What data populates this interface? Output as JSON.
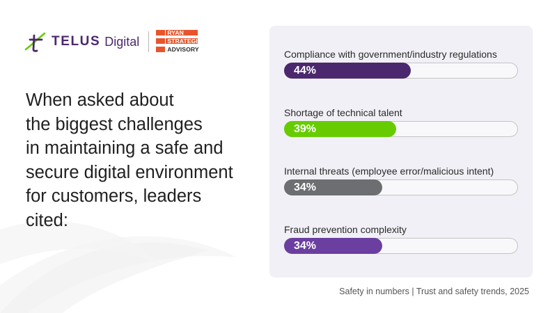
{
  "brand": {
    "telus_name": "TELUS",
    "telus_suffix": "Digital",
    "partner_lines": [
      "RYAN",
      "STRATEGIC",
      "ADVISORY"
    ],
    "colors": {
      "telus_purple": "#4b286d",
      "telus_green": "#66cc00",
      "partner_orange": "#e8552c"
    }
  },
  "headline": {
    "lines": [
      "When asked about",
      "the biggest challenges",
      "in maintaining a safe and",
      "secure digital environment",
      "for customers, leaders",
      "cited:"
    ]
  },
  "chart_data": {
    "type": "bar",
    "orientation": "horizontal",
    "unit": "%",
    "xlim": [
      0,
      100
    ],
    "categories": [
      "Compliance with government/industry regulations",
      "Shortage of technical talent",
      "Internal threats (employee error/malicious intent)",
      "Fraud prevention complexity"
    ],
    "values": [
      44,
      39,
      34,
      34
    ],
    "value_labels": [
      "44%",
      "39%",
      "34%",
      "34%"
    ],
    "colors": [
      "#4b286d",
      "#66cc00",
      "#6d6e71",
      "#6b3fa0"
    ]
  },
  "footer": {
    "text": "Safety in numbers | Trust and safety trends, 2025"
  }
}
